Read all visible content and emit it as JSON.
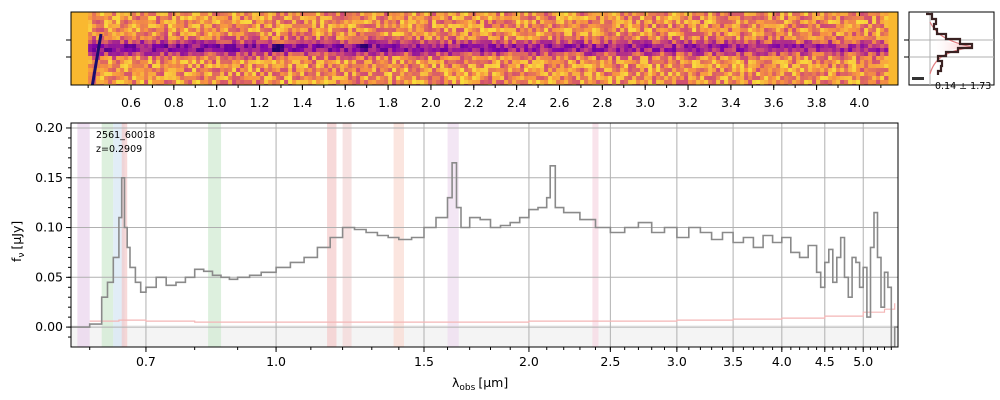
{
  "colors": {
    "spectrum": "#8a8a8a",
    "error_line": "#f4b6b6",
    "grid": "#b0b0b0",
    "profile": "#3a2222",
    "profile_fill": "#f7b0b4",
    "profile_model": "#c0282c",
    "heatmap_low": "#22006a",
    "heatmap_mid": "#c02a78",
    "heatmap_high": "#f9f33c"
  },
  "chart_data": [
    {
      "type": "heatmap",
      "panel": "2d-spectrum",
      "x_ticks": [
        "0.6",
        "0.8",
        "1.0",
        "1.2",
        "1.4",
        "1.6",
        "1.8",
        "2.0",
        "2.2",
        "2.4",
        "2.6",
        "2.8",
        "3.0",
        "3.2",
        "3.4",
        "3.6",
        "3.8",
        "4.0"
      ],
      "x_tick_values": [
        0.6,
        0.8,
        1.0,
        1.2,
        1.4,
        1.6,
        1.8,
        2.0,
        2.2,
        2.4,
        2.6,
        2.8,
        3.0,
        3.2,
        3.4,
        3.6,
        3.8,
        4.0
      ],
      "xlim": [
        0.32,
        4.18
      ],
      "colormap": "plasma"
    },
    {
      "type": "line",
      "panel": "spatial-profile",
      "annotation": "0.14 ± 1.73"
    },
    {
      "type": "line",
      "panel": "1d-spectrum",
      "annotation_lines": [
        "2561_60018",
        "z=0.2909"
      ],
      "xlabel_main": "λ",
      "xlabel_sub": "obs",
      "xlabel_unit": "[μm]",
      "ylabel_main": "f",
      "ylabel_sub": "ν",
      "ylabel_unit": "[μJy]",
      "x_scale": "log",
      "xlim": [
        0.57,
        5.5
      ],
      "ylim": [
        -0.02,
        0.205
      ],
      "x_ticks": [
        "0.7",
        "1.0",
        "1.5",
        "2.0",
        "2.5",
        "3.0",
        "3.5",
        "4.0",
        "4.5",
        "5.0"
      ],
      "x_tick_values": [
        0.7,
        1.0,
        1.5,
        2.0,
        2.5,
        3.0,
        3.5,
        4.0,
        4.5,
        5.0
      ],
      "y_ticks": [
        "0.00",
        "0.05",
        "0.10",
        "0.15",
        "0.20"
      ],
      "y_tick_values": [
        0.0,
        0.05,
        0.1,
        0.15,
        0.2
      ],
      "grid": true,
      "line_bands": [
        {
          "lo": 0.58,
          "hi": 0.6,
          "color": "#e9d3ec"
        },
        {
          "lo": 0.62,
          "hi": 0.64,
          "color": "#cfead0"
        },
        {
          "lo": 0.64,
          "hi": 0.66,
          "color": "#d4e6f4"
        },
        {
          "lo": 0.655,
          "hi": 0.665,
          "color": "#f3c9c9"
        },
        {
          "lo": 0.83,
          "hi": 0.86,
          "color": "#cfead0"
        },
        {
          "lo": 1.15,
          "hi": 1.18,
          "color": "#f3c9c9"
        },
        {
          "lo": 1.2,
          "hi": 1.23,
          "color": "#f4d6d6"
        },
        {
          "lo": 1.38,
          "hi": 1.42,
          "color": "#f9dad2"
        },
        {
          "lo": 1.6,
          "hi": 1.65,
          "color": "#eedcf0"
        },
        {
          "lo": 2.38,
          "hi": 2.42,
          "color": "#f7d7e2"
        }
      ],
      "series": [
        {
          "role": "flux",
          "x": [
            0.57,
            0.6,
            0.62,
            0.63,
            0.64,
            0.65,
            0.655,
            0.66,
            0.665,
            0.67,
            0.68,
            0.69,
            0.7,
            0.72,
            0.74,
            0.76,
            0.78,
            0.8,
            0.82,
            0.84,
            0.86,
            0.88,
            0.9,
            0.93,
            0.96,
            1.0,
            1.04,
            1.08,
            1.12,
            1.16,
            1.2,
            1.24,
            1.28,
            1.32,
            1.36,
            1.4,
            1.45,
            1.5,
            1.55,
            1.6,
            1.62,
            1.64,
            1.66,
            1.7,
            1.75,
            1.8,
            1.85,
            1.9,
            1.95,
            2.0,
            2.05,
            2.1,
            2.12,
            2.15,
            2.2,
            2.3,
            2.4,
            2.5,
            2.6,
            2.7,
            2.8,
            2.9,
            3.0,
            3.1,
            3.2,
            3.3,
            3.4,
            3.5,
            3.6,
            3.7,
            3.8,
            3.9,
            4.0,
            4.1,
            4.2,
            4.3,
            4.4,
            4.45,
            4.5,
            4.55,
            4.6,
            4.65,
            4.7,
            4.75,
            4.8,
            4.85,
            4.9,
            4.95,
            5.0,
            5.05,
            5.1,
            5.15,
            5.2,
            5.25,
            5.3,
            5.35,
            5.4,
            5.45,
            5.5
          ],
          "y": [
            0.0,
            0.003,
            0.03,
            0.045,
            0.07,
            0.11,
            0.15,
            0.1,
            0.08,
            0.06,
            0.045,
            0.035,
            0.04,
            0.05,
            0.042,
            0.045,
            0.05,
            0.058,
            0.056,
            0.052,
            0.05,
            0.048,
            0.05,
            0.052,
            0.055,
            0.06,
            0.065,
            0.07,
            0.08,
            0.09,
            0.1,
            0.098,
            0.095,
            0.092,
            0.09,
            0.088,
            0.09,
            0.1,
            0.11,
            0.13,
            0.165,
            0.12,
            0.1,
            0.11,
            0.108,
            0.1,
            0.102,
            0.105,
            0.11,
            0.118,
            0.12,
            0.13,
            0.162,
            0.12,
            0.115,
            0.108,
            0.1,
            0.095,
            0.1,
            0.105,
            0.095,
            0.1,
            0.09,
            0.1,
            0.095,
            0.088,
            0.095,
            0.085,
            0.09,
            0.08,
            0.092,
            0.085,
            0.09,
            0.075,
            0.07,
            0.082,
            0.055,
            0.04,
            0.065,
            0.078,
            0.045,
            0.07,
            0.09,
            0.05,
            0.03,
            0.07,
            0.065,
            0.04,
            0.06,
            0.01,
            0.08,
            0.115,
            0.07,
            0.02,
            0.055,
            0.04,
            -0.02,
            0.0,
            0.0
          ]
        },
        {
          "role": "error",
          "x": [
            0.6,
            0.65,
            0.7,
            0.8,
            0.9,
            1.0,
            1.2,
            1.5,
            2.0,
            2.5,
            3.0,
            3.5,
            4.0,
            4.5,
            5.0,
            5.3,
            5.45
          ],
          "y": [
            0.006,
            0.007,
            0.006,
            0.005,
            0.005,
            0.005,
            0.005,
            0.005,
            0.006,
            0.006,
            0.007,
            0.008,
            0.009,
            0.011,
            0.015,
            0.018,
            0.024
          ]
        }
      ]
    }
  ]
}
